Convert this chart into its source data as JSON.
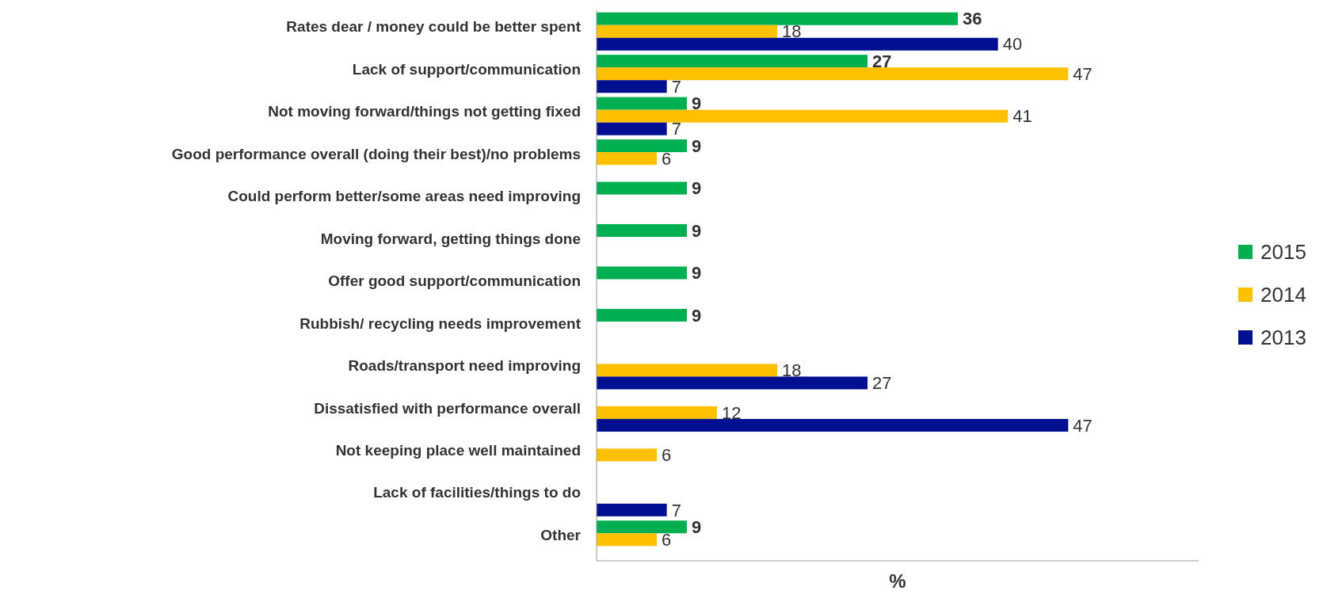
{
  "chart_data": {
    "type": "bar",
    "orientation": "horizontal",
    "xlabel": "%",
    "categories": [
      "Rates dear / money could be better spent",
      "Lack of support/communication",
      "Not moving forward/things not getting fixed",
      "Good performance overall (doing their best)/no problems",
      "Could perform better/some areas need improving",
      "Moving forward, getting things done",
      "Offer good support/communication",
      "Rubbish/ recycling needs improvement",
      "Roads/transport need improving",
      "Dissatisfied with performance overall",
      "Not keeping place well maintained",
      "Lack of facilities/things to do",
      "Other"
    ],
    "series": [
      {
        "name": "2015",
        "color": "#00b050",
        "values": [
          36,
          27,
          9,
          9,
          9,
          9,
          9,
          9,
          null,
          null,
          null,
          null,
          9
        ]
      },
      {
        "name": "2014",
        "color": "#ffc000",
        "values": [
          18,
          47,
          41,
          6,
          null,
          null,
          null,
          null,
          18,
          12,
          6,
          null,
          6
        ]
      },
      {
        "name": "2013",
        "color": "#000f8f",
        "values": [
          40,
          7,
          7,
          null,
          null,
          null,
          null,
          null,
          27,
          47,
          null,
          7,
          null
        ]
      }
    ],
    "xlim": [
      0,
      60
    ],
    "tick_labels": "y",
    "data_labels": true,
    "legend": "right"
  }
}
